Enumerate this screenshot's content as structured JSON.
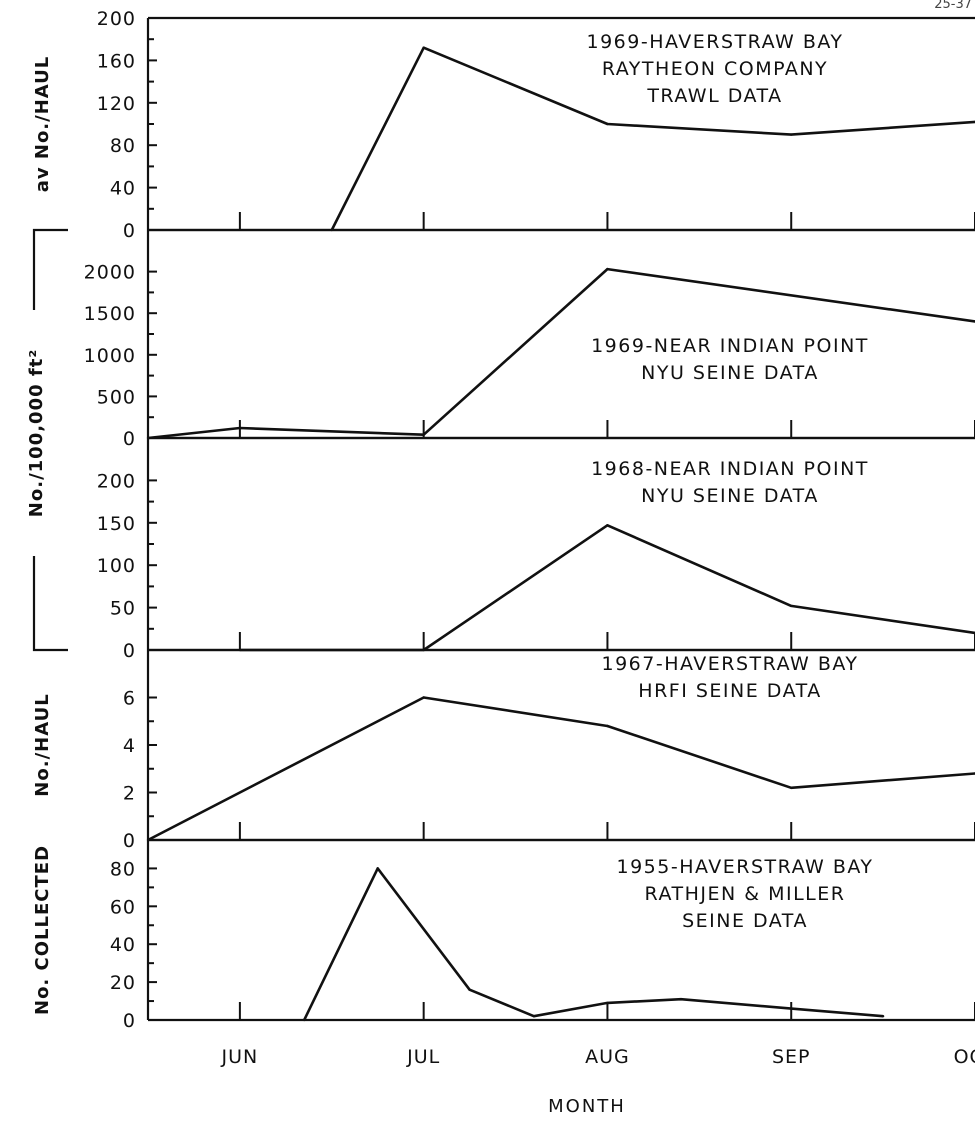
{
  "figure_number": "25-37",
  "chart_data": {
    "type": "line",
    "shared_x": {
      "label": "MONTH",
      "tick_labels": [
        "JUN",
        "JUL",
        "AUG",
        "SEP",
        "OCT"
      ],
      "tick_positions": [
        1,
        2,
        3,
        4,
        5
      ],
      "range": [
        0.5,
        5.0
      ]
    },
    "left_bracket_label": "No./100,000 ft²",
    "panels": [
      {
        "ylabel": "av No./HAUL",
        "ylim": [
          0,
          200
        ],
        "yticks": [
          0,
          40,
          80,
          120,
          160,
          200
        ],
        "annotation": [
          "1969-HAVERSTRAW BAY",
          "RAYTHEON COMPANY",
          "TRAWL DATA"
        ],
        "x": [
          1.5,
          2.0,
          3.0,
          4.0,
          5.0
        ],
        "y": [
          0,
          172,
          100,
          90,
          102
        ]
      },
      {
        "ylabel": "",
        "ylim": [
          0,
          2500
        ],
        "yticks": [
          0,
          500,
          1000,
          1500,
          2000
        ],
        "annotation": [
          "1969-NEAR INDIAN POINT",
          "NYU SEINE DATA"
        ],
        "x": [
          0.5,
          1.0,
          2.0,
          3.0,
          5.0
        ],
        "y": [
          0,
          120,
          40,
          2030,
          1400
        ]
      },
      {
        "ylabel": "",
        "ylim": [
          0,
          250
        ],
        "yticks": [
          0,
          50,
          100,
          150,
          200
        ],
        "annotation": [
          "1968-NEAR INDIAN POINT",
          "NYU SEINE DATA"
        ],
        "x": [
          1.0,
          2.0,
          3.0,
          4.0,
          5.0
        ],
        "y": [
          0,
          0,
          147,
          52,
          20
        ]
      },
      {
        "ylabel": "No./HAUL",
        "ylim": [
          0,
          8
        ],
        "yticks": [
          0,
          2,
          4,
          6
        ],
        "annotation": [
          "1967-HAVERSTRAW BAY",
          "HRFI SEINE DATA"
        ],
        "x": [
          0.5,
          2.0,
          3.0,
          4.0,
          5.0
        ],
        "y": [
          0,
          6,
          4.8,
          2.2,
          2.8
        ]
      },
      {
        "ylabel": "No. COLLECTED",
        "ylim": [
          0,
          95
        ],
        "yticks": [
          0,
          20,
          40,
          60,
          80
        ],
        "annotation": [
          "1955-HAVERSTRAW BAY",
          "RATHJEN & MILLER",
          "SEINE DATA"
        ],
        "x": [
          1.35,
          1.75,
          2.25,
          2.6,
          3.0,
          3.4,
          4.0,
          4.5
        ],
        "y": [
          0,
          80,
          16,
          2,
          9,
          11,
          6,
          2
        ]
      }
    ],
    "grid": false,
    "legend": "none"
  }
}
